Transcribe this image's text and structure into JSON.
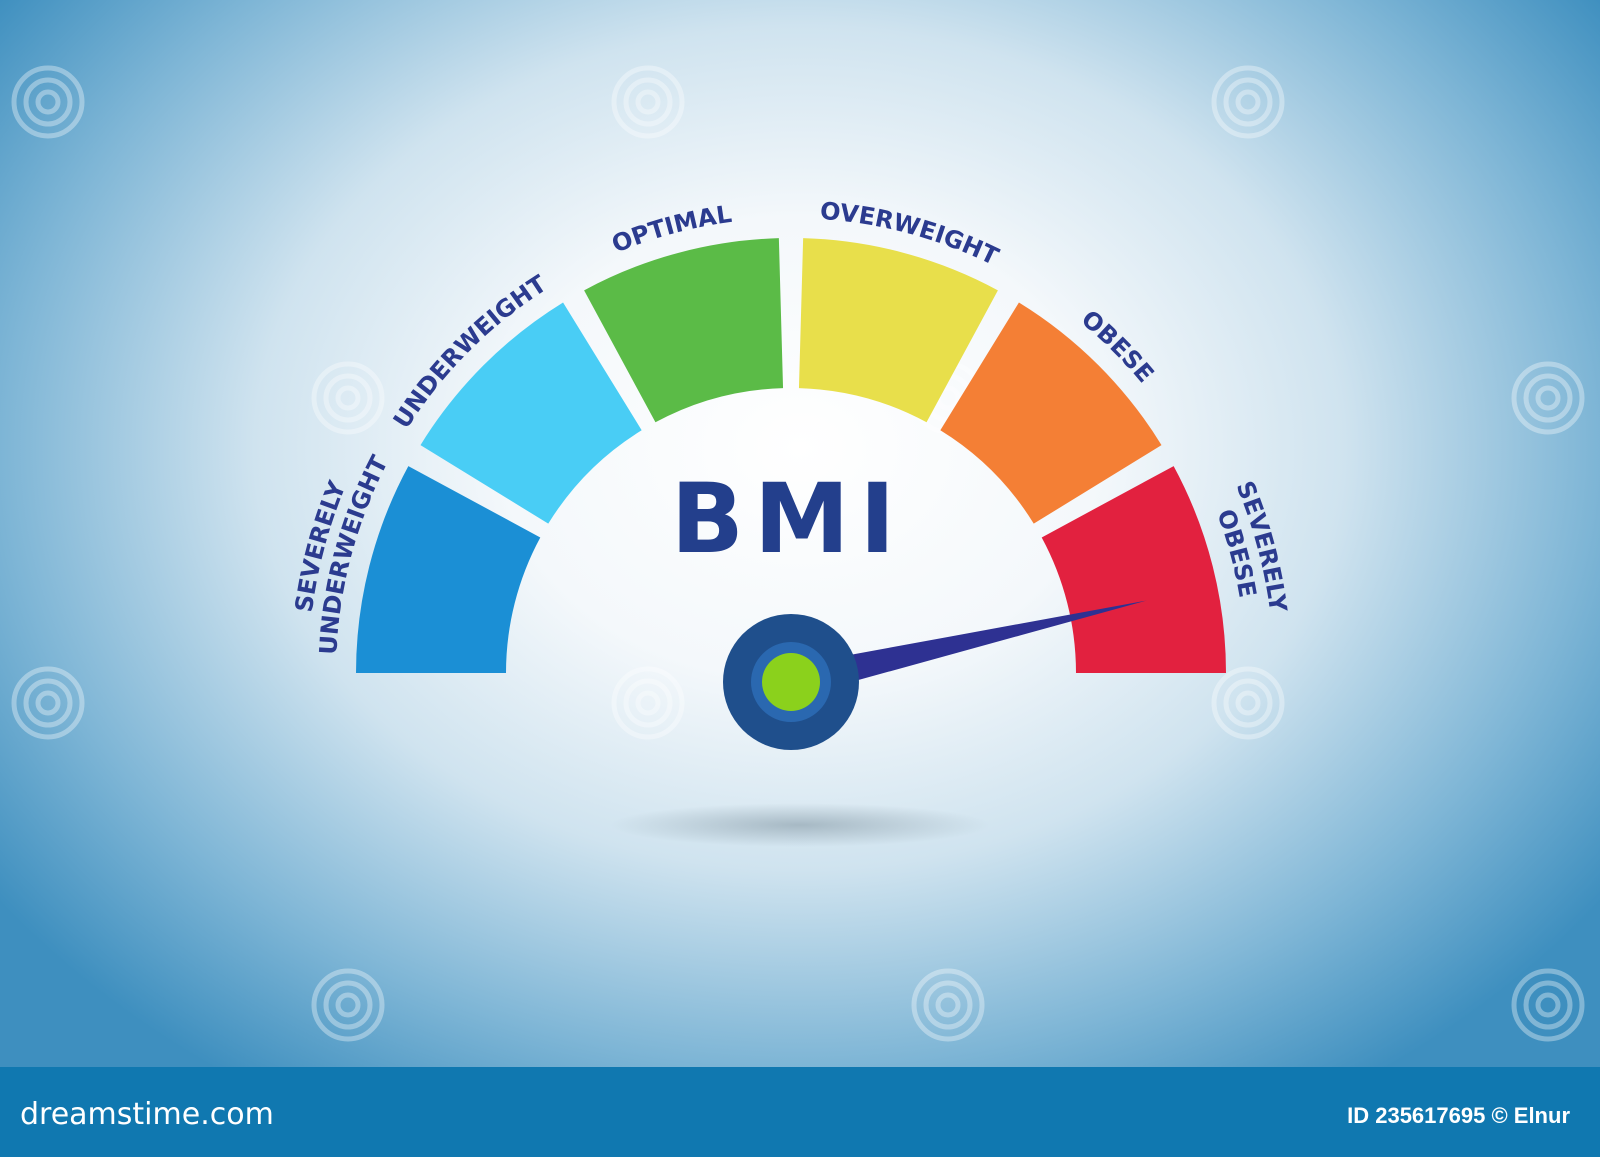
{
  "title": "BMI",
  "segments": [
    {
      "label_lines": [
        "SEVERELY",
        "UNDERWEIGHT"
      ],
      "color": "#1b8fd5"
    },
    {
      "label_lines": [
        "UNDERWEIGHT"
      ],
      "color": "#49cdf5"
    },
    {
      "label_lines": [
        "OPTIMAL"
      ],
      "color": "#5bbb47"
    },
    {
      "label_lines": [
        "OVERWEIGHT"
      ],
      "color": "#e8df4b"
    },
    {
      "label_lines": [
        "OBESE"
      ],
      "color": "#f47f35"
    },
    {
      "label_lines": [
        "SEVERELY",
        "OBESE"
      ],
      "color": "#e2213f"
    }
  ],
  "needle": {
    "indicated_category": "SEVERELY OBESE",
    "color": "#2e3192"
  },
  "footer": {
    "logo": "dreamstime.com",
    "credit": "ID 235617695 © Elnur"
  }
}
